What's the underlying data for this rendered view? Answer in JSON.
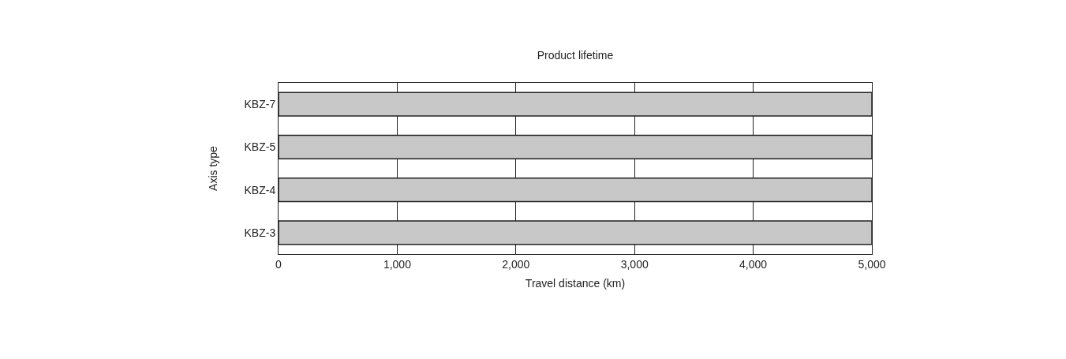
{
  "chart_data": {
    "type": "bar",
    "orientation": "horizontal",
    "title": "Product lifetime",
    "xlabel": "Travel distance (km)",
    "ylabel": "Axis type",
    "categories": [
      "KBZ-7",
      "KBZ-5",
      "KBZ-4",
      "KBZ-3"
    ],
    "values": [
      5000,
      5000,
      5000,
      5000
    ],
    "color": "#c8c8c8",
    "xlim": [
      0,
      5000
    ],
    "xticks": [
      {
        "value": 0,
        "label": "0"
      },
      {
        "value": 1000,
        "label": "1,000"
      },
      {
        "value": 2000,
        "label": "2,000"
      },
      {
        "value": 3000,
        "label": "3,000"
      },
      {
        "value": 4000,
        "label": "4,000"
      },
      {
        "value": 5000,
        "label": "5,000"
      }
    ],
    "grid": "x"
  }
}
